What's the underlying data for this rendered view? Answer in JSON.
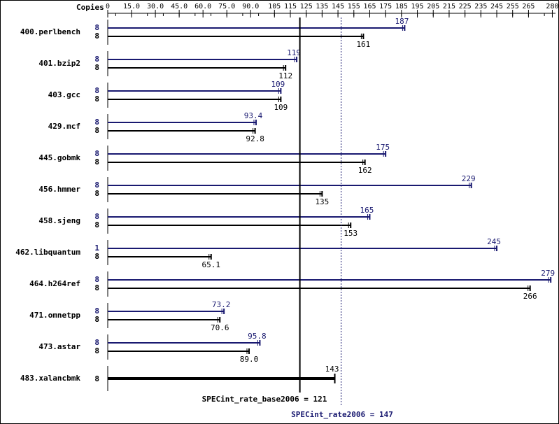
{
  "header": {
    "copies_label": "Copies"
  },
  "colors": {
    "peak": "#191970",
    "base": "#000000",
    "border": "#000000"
  },
  "chart_data": {
    "type": "bar",
    "orientation": "horizontal",
    "xlim": [
      0,
      282
    ],
    "x_ticks": [
      "0",
      "15.0",
      "30.0",
      "45.0",
      "60.0",
      "75.0",
      "90.0",
      "105",
      "115",
      "125",
      "135",
      "145",
      "155",
      "165",
      "175",
      "185",
      "195",
      "205",
      "215",
      "225",
      "235",
      "245",
      "255",
      "265",
      "280"
    ],
    "benchmarks": [
      {
        "name": "400.perlbench",
        "peak_copies": "8",
        "peak": 187,
        "peak_label": "187",
        "base_copies": "8",
        "base": 161,
        "base_label": "161"
      },
      {
        "name": "401.bzip2",
        "peak_copies": "8",
        "peak": 119,
        "peak_label": "119",
        "base_copies": "8",
        "base": 112,
        "base_label": "112"
      },
      {
        "name": "403.gcc",
        "peak_copies": "8",
        "peak": 109,
        "peak_label": "109",
        "base_copies": "8",
        "base": 109,
        "base_label": "109"
      },
      {
        "name": "429.mcf",
        "peak_copies": "8",
        "peak": 93.4,
        "peak_label": "93.4",
        "base_copies": "8",
        "base": 92.8,
        "base_label": "92.8"
      },
      {
        "name": "445.gobmk",
        "peak_copies": "8",
        "peak": 175,
        "peak_label": "175",
        "base_copies": "8",
        "base": 162,
        "base_label": "162"
      },
      {
        "name": "456.hmmer",
        "peak_copies": "8",
        "peak": 229,
        "peak_label": "229",
        "base_copies": "8",
        "base": 135,
        "base_label": "135"
      },
      {
        "name": "458.sjeng",
        "peak_copies": "8",
        "peak": 165,
        "peak_label": "165",
        "base_copies": "8",
        "base": 153,
        "base_label": "153"
      },
      {
        "name": "462.libquantum",
        "peak_copies": "1",
        "peak": 245,
        "peak_label": "245",
        "base_copies": "8",
        "base": 65.1,
        "base_label": "65.1"
      },
      {
        "name": "464.h264ref",
        "peak_copies": "8",
        "peak": 279,
        "peak_label": "279",
        "base_copies": "8",
        "base": 266,
        "base_label": "266"
      },
      {
        "name": "471.omnetpp",
        "peak_copies": "8",
        "peak": 73.2,
        "peak_label": "73.2",
        "base_copies": "8",
        "base": 70.6,
        "base_label": "70.6"
      },
      {
        "name": "473.astar",
        "peak_copies": "8",
        "peak": 95.8,
        "peak_label": "95.8",
        "base_copies": "8",
        "base": 89.0,
        "base_label": "89.0"
      },
      {
        "name": "483.xalancbmk",
        "peak_copies": null,
        "peak": null,
        "peak_label": null,
        "base_copies": "8",
        "base": 143,
        "base_label": "143"
      }
    ],
    "base_mean": 121,
    "base_mean_label": "SPECint_rate_base2006 = 121",
    "peak_mean": 147,
    "peak_mean_label": "SPECint_rate2006 = 147"
  }
}
